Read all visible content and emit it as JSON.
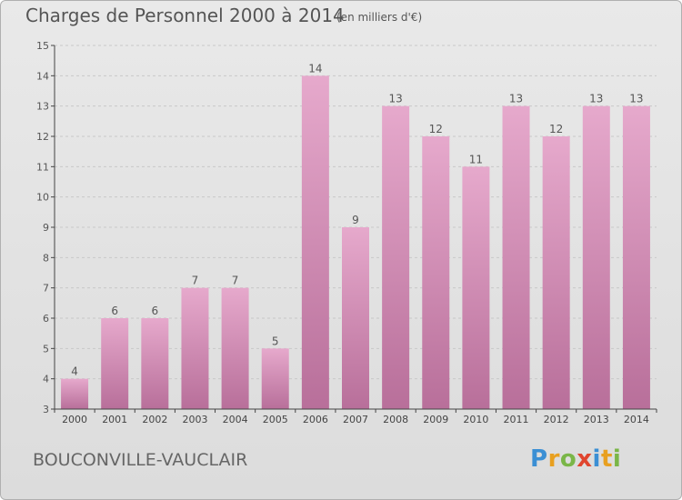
{
  "header": {
    "title": "Charges de Personnel 2000 à 2014",
    "subtitle": "(en milliers d'€)"
  },
  "footer": {
    "commune": "BOUCONVILLE-VAUCLAIR",
    "logo_letters": [
      "P",
      "r",
      "o",
      "x",
      "i",
      "t",
      "i"
    ],
    "logo_colors": [
      "#3b8fd4",
      "#e8a020",
      "#7ab648",
      "#e0452e",
      "#3b8fd4",
      "#e8a020",
      "#7ab648"
    ]
  },
  "colors": {
    "bar_light": "#e6a9cc",
    "bar_dark": "#b86f9a",
    "grid": "#c8c8c8",
    "axis": "#444444"
  },
  "chart_data": {
    "type": "bar",
    "title": "Charges de Personnel 2000 à 2014",
    "subtitle": "(en milliers d'€)",
    "categories": [
      "2000",
      "2001",
      "2002",
      "2003",
      "2004",
      "2005",
      "2006",
      "2007",
      "2008",
      "2009",
      "2010",
      "2011",
      "2012",
      "2013",
      "2014"
    ],
    "values": [
      4,
      6,
      6,
      7,
      7,
      5,
      14,
      9,
      13,
      12,
      11,
      13,
      12,
      13,
      13
    ],
    "ylim": [
      3,
      15
    ],
    "yticks": [
      3,
      4,
      5,
      6,
      7,
      8,
      9,
      10,
      11,
      12,
      13,
      14,
      15
    ],
    "grid": true
  }
}
